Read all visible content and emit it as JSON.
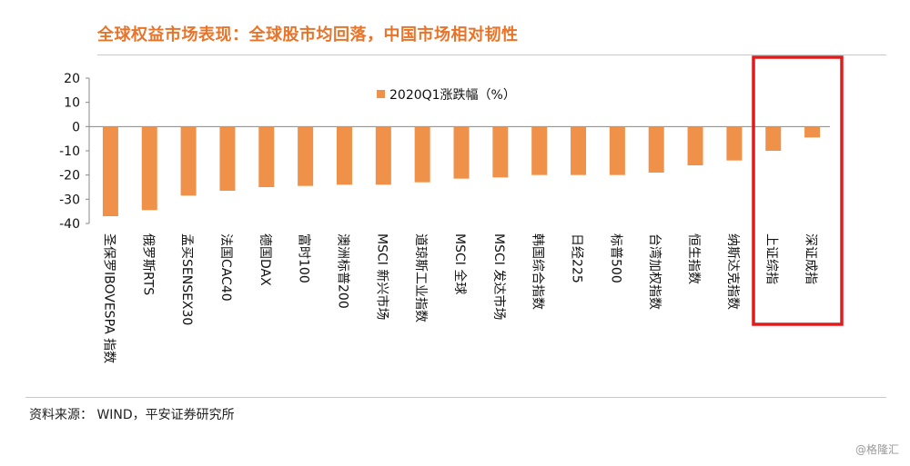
{
  "title": "全球权益市场表现：全球股市均回落，中国市场相对韧性",
  "source": "资料来源： WIND，平安证券研究所",
  "watermark": "@格隆汇",
  "colors": {
    "bar": "#F0914A",
    "title": "#E8742A",
    "highlight": "#E01B1B"
  },
  "chart_data": {
    "type": "bar",
    "legend": {
      "label": "2020Q1涨跌幅（%）",
      "placement": "top-center"
    },
    "categories": [
      "圣保罗IBOVESPA 指数",
      "俄罗斯RTS",
      "孟买SENSEX30",
      "法国CAC40",
      "德国DAX",
      "富时100",
      "澳洲标普200",
      "MSCI 新兴市场",
      "道琼斯工业指数",
      "MSCI 全球",
      "MSCI 发达市场",
      "韩国综合指数",
      "日经225",
      "标普500",
      "台湾加权指数",
      "恒生指数",
      "纳斯达克指数",
      "上证综指",
      "深证成指"
    ],
    "values": [
      -37,
      -34.5,
      -28.5,
      -26.5,
      -25,
      -24.5,
      -24,
      -24,
      -23,
      -21.5,
      -21,
      -20,
      -20,
      -20,
      -19,
      -16,
      -14,
      -10,
      -4.5
    ],
    "yticks": [
      20,
      10,
      0,
      -10,
      -20,
      -30,
      -40
    ],
    "ylim": [
      -40,
      20
    ],
    "highlight": [
      "上证综指",
      "深证成指"
    ]
  }
}
